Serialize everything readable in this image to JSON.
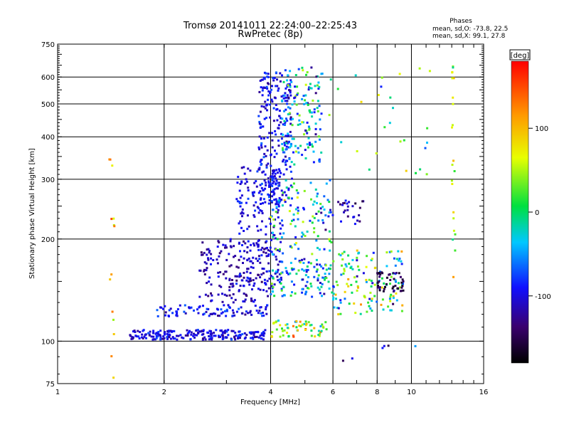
{
  "chart_data": {
    "type": "scatter",
    "title": "Tromsø 20141011 22:24:00–22:25:43",
    "subtitle": "RwPretec (8p)",
    "stats": {
      "heading": "Phases",
      "line1": "mean, sd,O: -73.8, 22.5",
      "line2": "mean, sd,X:  99.1, 27.8"
    },
    "xlabel": "Frequency [MHz]",
    "ylabel": "Stationary phase Virtual Height [km]",
    "xscale": "log",
    "yscale": "log",
    "xlim": [
      1,
      16
    ],
    "ylim": [
      75,
      750
    ],
    "xticks": [
      1,
      2,
      4,
      6,
      8,
      10,
      16
    ],
    "yticks": [
      75,
      100,
      200,
      300,
      400,
      500,
      600,
      750
    ],
    "grid": true,
    "colorbar": {
      "label": "[deg]",
      "ticks": [
        100,
        0,
        -100
      ],
      "range": [
        -180,
        180
      ]
    },
    "clusters": [
      {
        "fmin": 1.6,
        "fmax": 3.9,
        "hmin": 101,
        "hmax": 108,
        "phase": -100,
        "spread": 35,
        "count": 220
      },
      {
        "fmin": 1.9,
        "fmax": 4.0,
        "hmin": 118,
        "hmax": 128,
        "phase": -95,
        "spread": 40,
        "count": 90
      },
      {
        "fmin": 2.5,
        "fmax": 4.0,
        "hmin": 130,
        "hmax": 200,
        "phase": -115,
        "spread": 30,
        "count": 170
      },
      {
        "fmin": 3.2,
        "fmax": 4.3,
        "hmin": 140,
        "hmax": 330,
        "phase": -100,
        "spread": 30,
        "count": 190
      },
      {
        "fmin": 3.7,
        "fmax": 4.6,
        "hmin": 250,
        "hmax": 620,
        "phase": -95,
        "spread": 35,
        "count": 230
      },
      {
        "fmin": 4.3,
        "fmax": 5.6,
        "hmin": 330,
        "hmax": 640,
        "phase": -40,
        "spread": 120,
        "count": 150
      },
      {
        "fmin": 4.0,
        "fmax": 6.0,
        "hmin": 180,
        "hmax": 300,
        "phase": -20,
        "spread": 130,
        "count": 110
      },
      {
        "fmin": 4.0,
        "fmax": 5.8,
        "hmin": 103,
        "hmax": 115,
        "phase": 40,
        "spread": 120,
        "count": 60
      },
      {
        "fmin": 4.0,
        "fmax": 6.0,
        "hmin": 135,
        "hmax": 175,
        "phase": -40,
        "spread": 110,
        "count": 110
      },
      {
        "fmin": 6.0,
        "fmax": 9.5,
        "hmin": 120,
        "hmax": 185,
        "phase": 0,
        "spread": 150,
        "count": 140
      },
      {
        "fmin": 8.0,
        "fmax": 9.5,
        "hmin": 140,
        "hmax": 160,
        "phase": -150,
        "spread": 25,
        "count": 40
      },
      {
        "fmin": 6.2,
        "fmax": 7.5,
        "hmin": 220,
        "hmax": 260,
        "phase": -110,
        "spread": 50,
        "count": 25
      },
      {
        "fmin": 1.4,
        "fmax": 1.45,
        "hmin": 75,
        "hmax": 360,
        "phase": 90,
        "spread": 70,
        "count": 14
      },
      {
        "fmin": 13.0,
        "fmax": 13.3,
        "hmin": 150,
        "hmax": 660,
        "phase": 60,
        "spread": 90,
        "count": 22
      },
      {
        "fmin": 5.8,
        "fmax": 12.0,
        "hmin": 300,
        "hmax": 640,
        "phase": 20,
        "spread": 140,
        "count": 28
      },
      {
        "fmin": 5.8,
        "fmax": 11.0,
        "hmin": 78,
        "hmax": 100,
        "phase": -80,
        "spread": 110,
        "count": 6
      }
    ]
  }
}
